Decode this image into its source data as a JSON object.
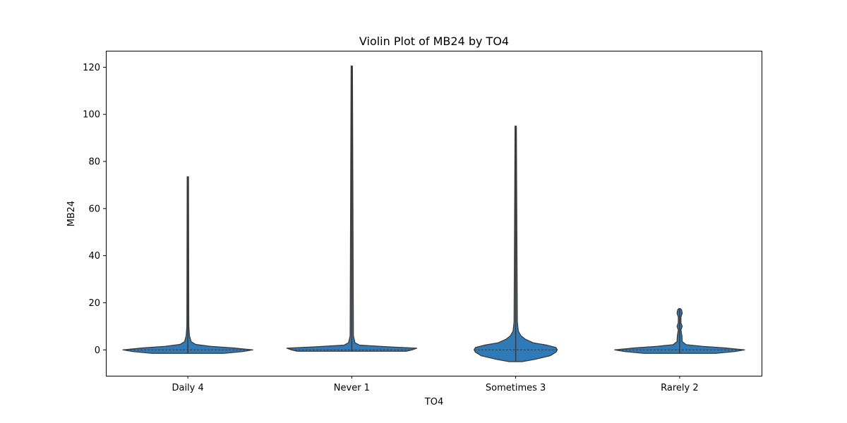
{
  "chart_data": {
    "type": "violin",
    "title": "Violin Plot of MB24 by TO4",
    "xlabel": "TO4",
    "ylabel": "MB24",
    "ylim": [
      -11,
      127
    ],
    "yticks": [
      0,
      20,
      40,
      60,
      80,
      100,
      120
    ],
    "grid": false,
    "color": "#2f7ab9",
    "edge_color": "#3a3a3a",
    "categories": [
      "Daily 4",
      "Never 1",
      "Sometimes 3",
      "Rarely 2"
    ],
    "violins": [
      {
        "category": "Daily 4",
        "min": -1.5,
        "max": 73.5,
        "median": 0,
        "profile": [
          [
            -1.5,
            0.55
          ],
          [
            -0.7,
            0.85
          ],
          [
            0,
            1.0
          ],
          [
            0.8,
            0.7
          ],
          [
            1.5,
            0.35
          ],
          [
            2.3,
            0.12
          ],
          [
            3.5,
            0.05
          ],
          [
            6,
            0.025
          ],
          [
            10,
            0.015
          ],
          [
            73.5,
            0.01
          ]
        ]
      },
      {
        "category": "Never 1",
        "min": -0.6,
        "max": 120.5,
        "median": 0,
        "profile": [
          [
            -0.6,
            0.84
          ],
          [
            0,
            0.93
          ],
          [
            0.7,
            1.0
          ],
          [
            1.3,
            0.55
          ],
          [
            2,
            0.12
          ],
          [
            3,
            0.05
          ],
          [
            6,
            0.025
          ],
          [
            120.5,
            0.01
          ]
        ]
      },
      {
        "category": "Sometimes 3",
        "min": -5,
        "max": 95,
        "median": 0,
        "profile": [
          [
            -5,
            0.1
          ],
          [
            -4,
            0.3
          ],
          [
            -2.5,
            0.53
          ],
          [
            -1,
            0.62
          ],
          [
            0,
            0.64
          ],
          [
            1,
            0.62
          ],
          [
            2,
            0.48
          ],
          [
            3,
            0.27
          ],
          [
            4.5,
            0.15
          ],
          [
            6,
            0.08
          ],
          [
            8,
            0.04
          ],
          [
            12,
            0.025
          ],
          [
            95,
            0.01
          ]
        ]
      },
      {
        "category": "Rarely 2",
        "min": -1.5,
        "max": 17.5,
        "median": 0,
        "profile": [
          [
            -1.5,
            0.55
          ],
          [
            -0.7,
            0.85
          ],
          [
            0,
            1.0
          ],
          [
            0.8,
            0.7
          ],
          [
            1.5,
            0.35
          ],
          [
            2.2,
            0.1
          ],
          [
            3.5,
            0.04
          ],
          [
            6,
            0.035
          ],
          [
            8.5,
            0.02
          ],
          [
            10,
            0.04
          ],
          [
            11.5,
            0.02
          ],
          [
            14,
            0.02
          ],
          [
            15.5,
            0.04
          ],
          [
            17,
            0.03
          ],
          [
            17.5,
            0.01
          ]
        ]
      }
    ]
  }
}
